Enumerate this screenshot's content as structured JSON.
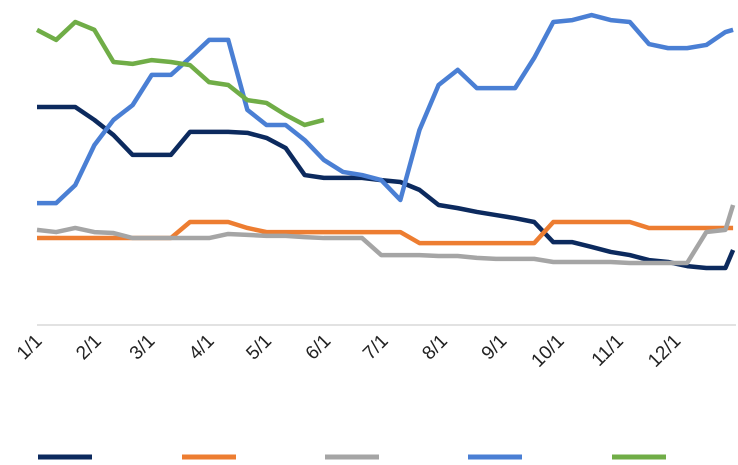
{
  "chart_data": {
    "type": "line",
    "xlim": [
      0,
      365
    ],
    "ylim": [
      0,
      100
    ],
    "xticks": [
      {
        "value": 0,
        "label": "1/1"
      },
      {
        "value": 31,
        "label": "2/1"
      },
      {
        "value": 59,
        "label": "3/1"
      },
      {
        "value": 90,
        "label": "4/1"
      },
      {
        "value": 120,
        "label": "5/1"
      },
      {
        "value": 151,
        "label": "6/1"
      },
      {
        "value": 181,
        "label": "7/1"
      },
      {
        "value": 212,
        "label": "8/1"
      },
      {
        "value": 243,
        "label": "9/1"
      },
      {
        "value": 273,
        "label": "10/1"
      },
      {
        "value": 304,
        "label": "11/1"
      },
      {
        "value": 334,
        "label": "12/1"
      }
    ],
    "x": [
      0,
      10,
      20,
      30,
      40,
      50,
      60,
      70,
      80,
      90,
      100,
      110,
      120,
      130,
      140,
      150,
      160,
      170,
      180,
      190,
      200,
      210,
      220,
      230,
      240,
      250,
      260,
      270,
      280,
      290,
      300,
      310,
      320,
      330,
      340,
      350,
      360,
      364
    ],
    "series": [
      {
        "color": "#0c2a5e",
        "values": [
          69.2,
          69.2,
          69.2,
          65.1,
          60.3,
          54.0,
          54.0,
          54.0,
          61.3,
          61.3,
          61.3,
          61.0,
          59.4,
          56.2,
          47.6,
          46.7,
          46.7,
          46.7,
          46.0,
          45.4,
          42.9,
          38.1,
          37.1,
          35.9,
          34.9,
          33.9,
          32.7,
          26.3,
          26.3,
          24.8,
          23.2,
          22.2,
          20.6,
          20.0,
          18.7,
          18.1,
          18.1,
          23.8
        ]
      },
      {
        "color": "#ed7d31",
        "values": [
          27.6,
          27.6,
          27.6,
          27.6,
          27.6,
          27.6,
          27.6,
          27.6,
          32.7,
          32.7,
          32.7,
          30.8,
          29.5,
          29.5,
          29.5,
          29.5,
          29.5,
          29.5,
          29.5,
          29.5,
          26.0,
          26.0,
          26.0,
          26.0,
          26.0,
          26.0,
          26.0,
          32.7,
          32.7,
          32.7,
          32.7,
          32.7,
          30.8,
          30.8,
          30.8,
          30.8,
          30.8,
          30.8
        ]
      },
      {
        "color": "#a5a5a5",
        "values": [
          30.2,
          29.5,
          30.8,
          29.5,
          29.2,
          27.6,
          27.6,
          27.6,
          27.6,
          27.6,
          28.9,
          28.6,
          28.3,
          28.3,
          27.9,
          27.6,
          27.6,
          27.6,
          22.2,
          22.2,
          22.2,
          21.9,
          21.9,
          21.3,
          21.0,
          21.0,
          21.0,
          20.0,
          20.0,
          20.0,
          20.0,
          19.7,
          19.7,
          19.7,
          19.7,
          29.5,
          30.2,
          38.1
        ]
      },
      {
        "color": "#4a7fd4",
        "values": [
          38.7,
          38.7,
          44.4,
          57.1,
          65.1,
          69.8,
          79.4,
          79.4,
          84.8,
          90.5,
          90.5,
          68.3,
          63.5,
          63.5,
          58.7,
          52.4,
          48.6,
          47.6,
          46.0,
          39.7,
          61.9,
          76.2,
          81.0,
          75.2,
          75.2,
          75.2,
          84.8,
          96.2,
          96.8,
          98.4,
          96.8,
          96.2,
          89.2,
          87.9,
          87.9,
          88.9,
          93.0,
          93.7
        ]
      },
      {
        "color": "#70ad47",
        "values": [
          93.7,
          90.5,
          96.2,
          93.7,
          83.5,
          82.9,
          84.1,
          83.5,
          82.5,
          77.1,
          76.2,
          71.4,
          70.5,
          66.7,
          63.5,
          65.1,
          null,
          null,
          null,
          null,
          null,
          null,
          null,
          null,
          null,
          null,
          null,
          null,
          null,
          null,
          null,
          null,
          null,
          null,
          null,
          null,
          null,
          null
        ]
      }
    ]
  }
}
